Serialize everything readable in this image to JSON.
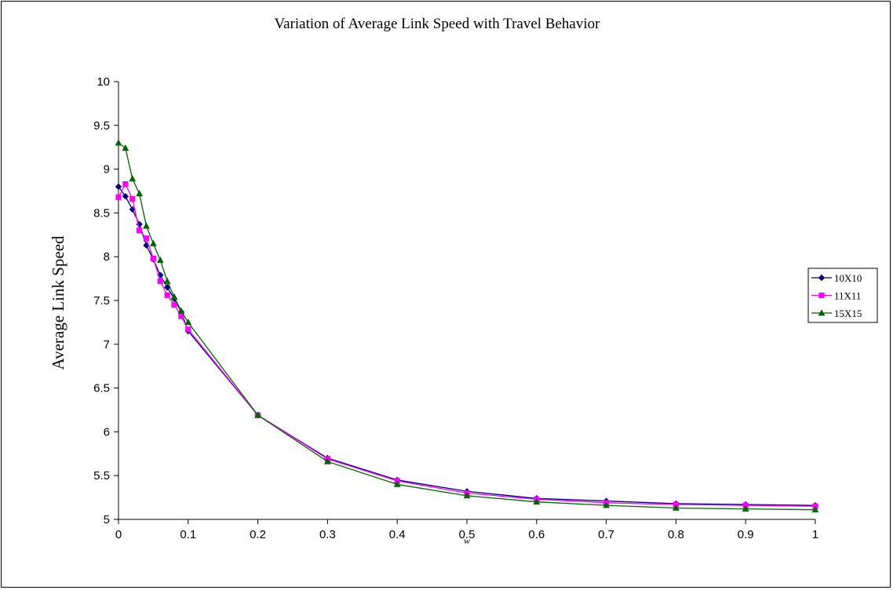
{
  "chart_data": {
    "type": "line",
    "title": "Variation of Average Link Speed with Travel Behavior",
    "xlabel": "w",
    "ylabel": "Average Link Speed",
    "xlim": [
      0,
      1
    ],
    "ylim": [
      5,
      10
    ],
    "x_ticks": [
      "0",
      "0.1",
      "0.2",
      "0.3",
      "0.4",
      "0.5",
      "0.6",
      "0.7",
      "0.8",
      "0.9",
      "1"
    ],
    "y_ticks": [
      "5",
      "5.5",
      "6",
      "6.5",
      "7",
      "7.5",
      "8",
      "8.5",
      "9",
      "9.5",
      "10"
    ],
    "grid": false,
    "legend_position": "right",
    "x": [
      0,
      0.01,
      0.02,
      0.03,
      0.04,
      0.05,
      0.06,
      0.07,
      0.08,
      0.09,
      0.1,
      0.2,
      0.3,
      0.4,
      0.5,
      0.6,
      0.7,
      0.8,
      0.9,
      1.0
    ],
    "series": [
      {
        "name": "10X10",
        "color": "#000080",
        "marker": "diamond",
        "values": [
          8.8,
          8.69,
          8.54,
          8.37,
          8.13,
          7.97,
          7.79,
          7.65,
          7.52,
          7.37,
          7.15,
          6.19,
          5.7,
          5.45,
          5.32,
          5.24,
          5.21,
          5.18,
          5.17,
          5.16
        ]
      },
      {
        "name": "11X11",
        "color": "#FF00FF",
        "marker": "square",
        "values": [
          8.68,
          8.83,
          8.66,
          8.3,
          8.21,
          7.98,
          7.72,
          7.56,
          7.45,
          7.32,
          7.17,
          6.19,
          5.69,
          5.44,
          5.3,
          5.23,
          5.19,
          5.17,
          5.16,
          5.15
        ]
      },
      {
        "name": "15X15",
        "color": "#006400",
        "marker": "triangle",
        "values": [
          9.3,
          9.24,
          8.89,
          8.72,
          8.35,
          8.15,
          7.96,
          7.72,
          7.54,
          7.38,
          7.25,
          6.19,
          5.66,
          5.4,
          5.27,
          5.2,
          5.16,
          5.13,
          5.12,
          5.11
        ]
      }
    ]
  }
}
